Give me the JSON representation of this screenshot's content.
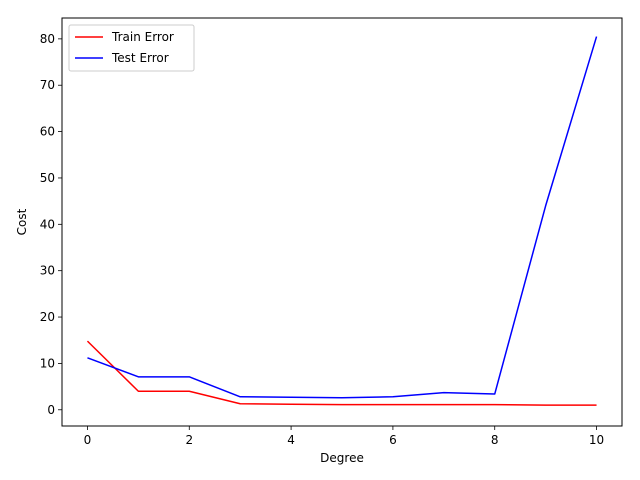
{
  "chart_data": {
    "type": "line",
    "title": "",
    "xlabel": "Degree",
    "ylabel": "Cost",
    "xlim": [
      -0.5,
      10.5
    ],
    "ylim": [
      -3.5,
      84.5
    ],
    "xticks": [
      0,
      2,
      4,
      6,
      8,
      10
    ],
    "yticks": [
      0,
      10,
      20,
      30,
      40,
      50,
      60,
      70,
      80
    ],
    "grid": false,
    "legend_position": "top-left",
    "x": [
      0,
      1,
      2,
      3,
      4,
      5,
      6,
      7,
      8,
      9,
      10
    ],
    "series": [
      {
        "name": "Train Error",
        "color": "#ff0000",
        "values": [
          14.8,
          4.0,
          4.0,
          1.3,
          1.2,
          1.1,
          1.1,
          1.1,
          1.1,
          1.0,
          1.0
        ]
      },
      {
        "name": "Test Error",
        "color": "#0000ff",
        "values": [
          11.2,
          7.1,
          7.1,
          2.8,
          2.7,
          2.6,
          2.8,
          3.7,
          3.4,
          44.0,
          80.5
        ]
      }
    ]
  }
}
